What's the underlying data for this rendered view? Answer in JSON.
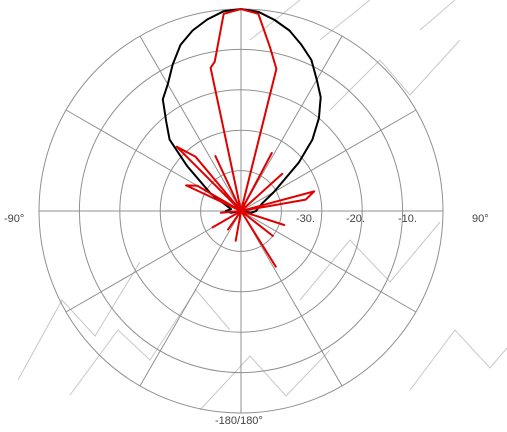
{
  "chart_data": {
    "type": "polar",
    "title": "",
    "angle_labels": {
      "left": "-90°",
      "right": "90°",
      "bottom": "-180/180°"
    },
    "radial_tick_labels": [
      "-30.",
      "-20.",
      "-10."
    ],
    "radial_range_db": [
      -40,
      0
    ],
    "ring_levels_db": [
      -32,
      -24,
      -16,
      -8,
      0
    ],
    "spoke_step_deg": 30,
    "grid": true,
    "colors": {
      "grid": "#909090",
      "series_black": "#000000",
      "series_red": "#e00000",
      "watermark": "#c8c8c8"
    },
    "watermark_text": "INFO",
    "series": [
      {
        "color": "#000000",
        "points": [
          [
            -180,
            -40
          ],
          [
            -150,
            -40
          ],
          [
            -120,
            -40
          ],
          [
            -100,
            -38
          ],
          [
            -90,
            -37
          ],
          [
            -80,
            -38
          ],
          [
            -70,
            -37
          ],
          [
            -60,
            -33
          ],
          [
            -50,
            -26
          ],
          [
            -45,
            -20
          ],
          [
            -40,
            -17
          ],
          [
            -35,
            -13
          ],
          [
            -30,
            -11
          ],
          [
            -25,
            -8
          ],
          [
            -20,
            -5
          ],
          [
            -15,
            -3
          ],
          [
            -10,
            -1.5
          ],
          [
            -5,
            -0.3
          ],
          [
            0,
            0
          ],
          [
            5,
            -0.4
          ],
          [
            10,
            -1.6
          ],
          [
            15,
            -3
          ],
          [
            20,
            -5
          ],
          [
            25,
            -7
          ],
          [
            30,
            -10
          ],
          [
            35,
            -12.5
          ],
          [
            40,
            -16
          ],
          [
            45,
            -20
          ],
          [
            50,
            -25
          ],
          [
            55,
            -30
          ],
          [
            60,
            -32.5
          ],
          [
            70,
            -35.5
          ],
          [
            80,
            -36.5
          ],
          [
            90,
            -37
          ],
          [
            100,
            -38
          ],
          [
            120,
            -40
          ],
          [
            150,
            -40
          ],
          [
            180,
            -40
          ]
        ]
      },
      {
        "color": "#e00000",
        "points": [
          [
            -180,
            -40
          ],
          [
            -170,
            -34
          ],
          [
            -165,
            -40
          ],
          [
            -150,
            -40
          ],
          [
            -145,
            -35.5
          ],
          [
            -140,
            -40
          ],
          [
            -125,
            -40
          ],
          [
            -120,
            -33.5
          ],
          [
            -115,
            -40
          ],
          [
            -100,
            -40
          ],
          [
            -95,
            -36
          ],
          [
            -90,
            -40
          ],
          [
            -70,
            -40
          ],
          [
            -65,
            -28
          ],
          [
            -60,
            -30
          ],
          [
            -55,
            -40
          ],
          [
            -48,
            -40
          ],
          [
            -45,
            -22
          ],
          [
            -40,
            -26
          ],
          [
            -35,
            -40
          ],
          [
            -30,
            -40
          ],
          [
            -25,
            -28
          ],
          [
            -20,
            -40
          ],
          [
            -15,
            -40
          ],
          [
            -12,
            -11
          ],
          [
            -10,
            -10
          ],
          [
            -5,
            -0.8
          ],
          [
            0,
            0
          ],
          [
            5,
            -0.8
          ],
          [
            10,
            -7
          ],
          [
            14,
            -11
          ],
          [
            20,
            -40
          ],
          [
            25,
            -40
          ],
          [
            28,
            -27
          ],
          [
            32,
            -40
          ],
          [
            45,
            -40
          ],
          [
            48,
            -29
          ],
          [
            52,
            -40
          ],
          [
            70,
            -40
          ],
          [
            75,
            -25
          ],
          [
            80,
            -27
          ],
          [
            85,
            -40
          ],
          [
            105,
            -40
          ],
          [
            108,
            -31
          ],
          [
            112,
            -40
          ],
          [
            125,
            -40
          ],
          [
            128,
            -32
          ],
          [
            132,
            -40
          ],
          [
            145,
            -40
          ],
          [
            148,
            -27
          ],
          [
            152,
            -40
          ],
          [
            180,
            -40
          ]
        ]
      }
    ]
  }
}
